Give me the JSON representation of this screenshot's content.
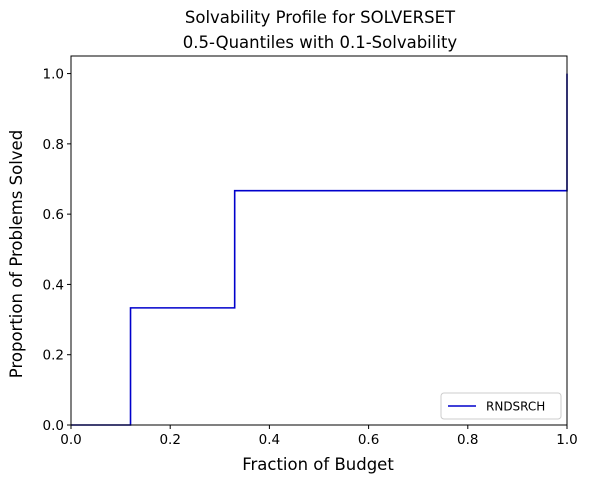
{
  "chart_data": {
    "type": "line",
    "title_line1": "Solvability Profile for SOLVERSET",
    "title_line2": "0.5-Quantiles with 0.1-Solvability",
    "xlabel": "Fraction of Budget",
    "ylabel": "Proportion of Problems Solved",
    "xlim": [
      0,
      1
    ],
    "ylim": [
      0,
      1.05
    ],
    "x_ticks": [
      0.0,
      0.2,
      0.4,
      0.6,
      0.8,
      1.0
    ],
    "x_tick_labels": [
      "0.0",
      "0.2",
      "0.4",
      "0.6",
      "0.8",
      "1.0"
    ],
    "y_ticks": [
      0.0,
      0.2,
      0.4,
      0.6,
      0.8,
      1.0
    ],
    "y_tick_labels": [
      "0.0",
      "0.2",
      "0.4",
      "0.6",
      "0.8",
      "1.0"
    ],
    "grid": false,
    "legend_position": "bottom-right",
    "series": [
      {
        "name": "RNDSRCH",
        "color": "#0000cc",
        "step": "post",
        "x": [
          0.0,
          0.12,
          0.33,
          1.0
        ],
        "y": [
          0.0,
          0.3333,
          0.6667,
          1.0
        ]
      }
    ]
  }
}
